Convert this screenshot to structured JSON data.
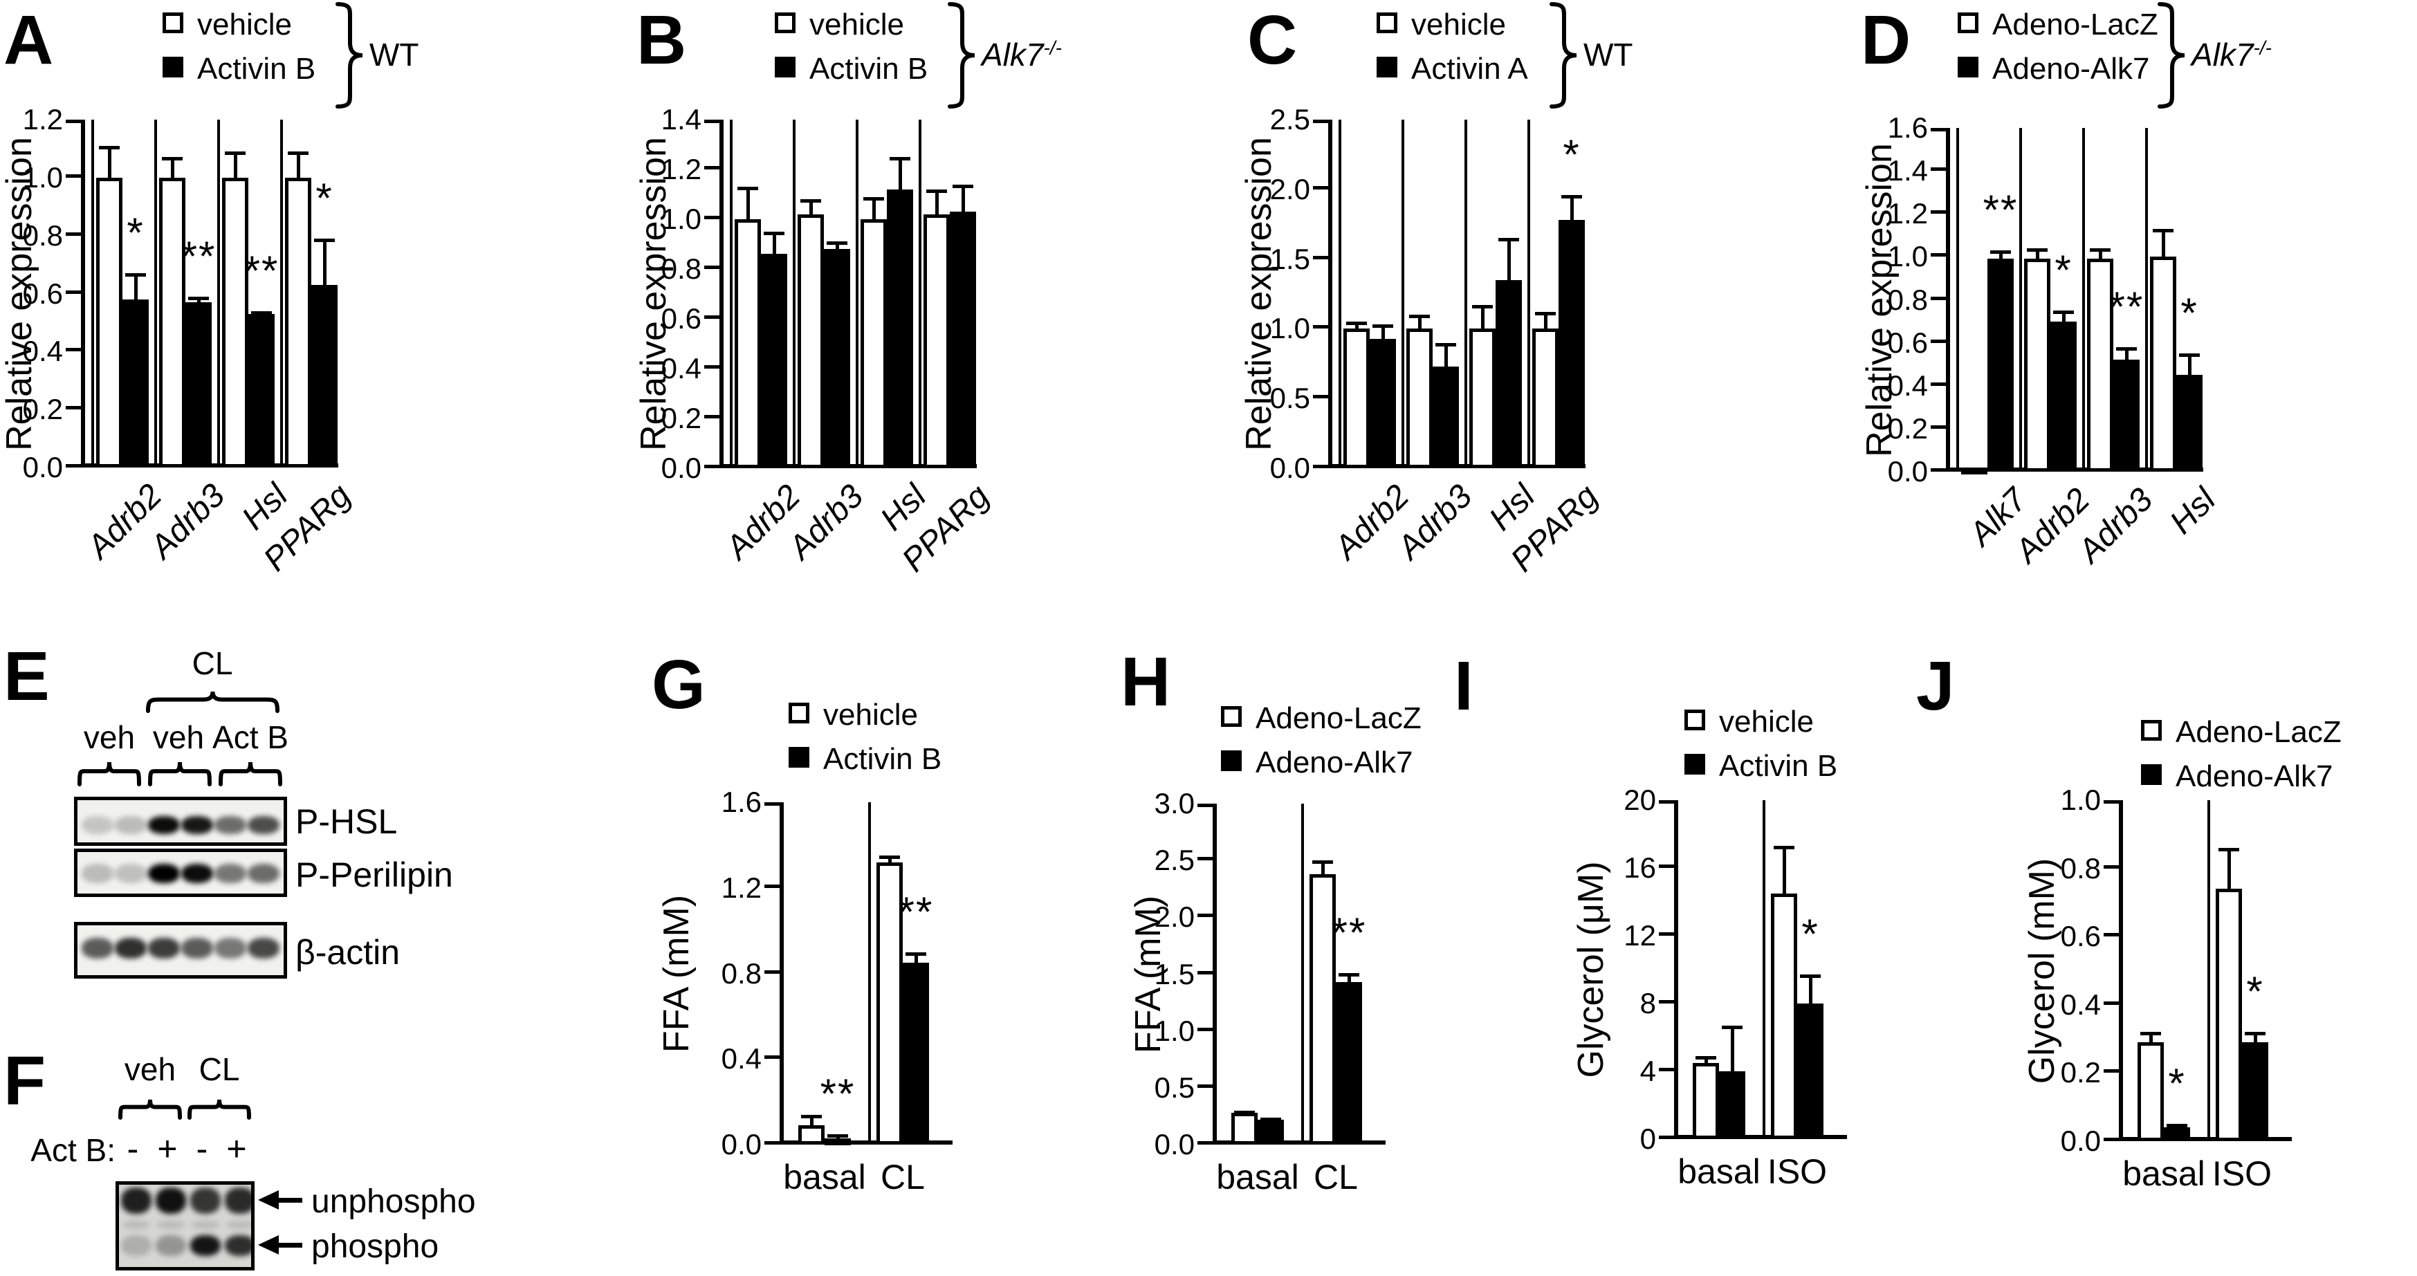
{
  "panels": {
    "A": {
      "letter": "A",
      "legend": {
        "items": [
          {
            "label": "vehicle",
            "fill": "open"
          },
          {
            "label": "Activin B",
            "fill": "solid"
          }
        ],
        "group": {
          "text": "WT",
          "sup": "",
          "italic": false
        }
      }
    },
    "B": {
      "letter": "B",
      "legend": {
        "items": [
          {
            "label": "vehicle",
            "fill": "open"
          },
          {
            "label": "Activin B",
            "fill": "solid"
          }
        ],
        "group": {
          "text": "Alk7",
          "sup": "-/-",
          "italic": true
        }
      }
    },
    "C": {
      "letter": "C",
      "legend": {
        "items": [
          {
            "label": "vehicle",
            "fill": "open"
          },
          {
            "label": "Activin A",
            "fill": "solid"
          }
        ],
        "group": {
          "text": "WT",
          "sup": "",
          "italic": false
        }
      }
    },
    "D": {
      "letter": "D",
      "legend": {
        "items": [
          {
            "label": "Adeno-LacZ",
            "fill": "open"
          },
          {
            "label": "Adeno-Alk7",
            "fill": "solid"
          }
        ],
        "group": {
          "text": "Alk7",
          "sup": "-/-",
          "italic": true
        }
      }
    },
    "G": {
      "letter": "G",
      "legend": {
        "items": [
          {
            "label": "vehicle",
            "fill": "open"
          },
          {
            "label": "Activin B",
            "fill": "solid"
          }
        ]
      }
    },
    "H": {
      "letter": "H",
      "legend": {
        "items": [
          {
            "label": "Adeno-LacZ",
            "fill": "open"
          },
          {
            "label": "Adeno-Alk7",
            "fill": "solid"
          }
        ]
      }
    },
    "I": {
      "letter": "I",
      "legend": {
        "items": [
          {
            "label": "vehicle",
            "fill": "open"
          },
          {
            "label": "Activin B",
            "fill": "solid"
          }
        ]
      }
    },
    "J": {
      "letter": "J",
      "legend": {
        "items": [
          {
            "label": "Adeno-LacZ",
            "fill": "open"
          },
          {
            "label": "Adeno-Alk7",
            "fill": "solid"
          }
        ]
      }
    },
    "E": {
      "letter": "E",
      "treatment_label": "CL",
      "group_labels": [
        "veh",
        "veh",
        "Act B"
      ],
      "rows": [
        {
          "label": "P-HSL",
          "bands": [
            0.18,
            0.22,
            0.95,
            0.9,
            0.55,
            0.68
          ]
        },
        {
          "label": "P-Perilipin",
          "bands": [
            0.22,
            0.2,
            1.0,
            0.95,
            0.5,
            0.55
          ]
        },
        {
          "label": "β-actin",
          "bands": [
            0.62,
            0.8,
            0.75,
            0.62,
            0.5,
            0.7
          ]
        }
      ]
    },
    "F": {
      "letter": "F",
      "group_labels": [
        "veh",
        "CL"
      ],
      "row_label": "Act B:",
      "lane_signs": [
        "-",
        "+",
        "-",
        "+"
      ],
      "band_rows": [
        {
          "label": "unphospho",
          "bands": [
            0.85,
            0.92,
            0.75,
            0.8
          ]
        },
        {
          "label": "phospho",
          "bands": [
            0.18,
            0.3,
            0.9,
            0.78
          ]
        }
      ]
    }
  },
  "chart_data": [
    {
      "panel": "A",
      "type": "bar",
      "title": "",
      "xlabel": "",
      "ylabel": "Relative expression",
      "ylim": [
        0,
        1.2
      ],
      "yticks": [
        "0.0",
        "0.2",
        "0.4",
        "0.6",
        "0.8",
        "1.0",
        "1.2"
      ],
      "categories": [
        "Adrb2",
        "Adrb3",
        "Hsl",
        "PPARg"
      ],
      "categories_italic": true,
      "x_rotated": true,
      "grid": false,
      "legend_position": "top",
      "series": [
        {
          "name": "vehicle",
          "fill": "open",
          "values": [
            1.0,
            1.0,
            1.0,
            1.0
          ],
          "errors": [
            0.11,
            0.07,
            0.09,
            0.09
          ]
        },
        {
          "name": "Activin B",
          "fill": "solid",
          "values": [
            0.58,
            0.57,
            0.53,
            0.63
          ],
          "errors": [
            0.09,
            0.02,
            0.01,
            0.16
          ]
        }
      ],
      "significance": [
        "*",
        "**",
        "**",
        "*"
      ]
    },
    {
      "panel": "B",
      "type": "bar",
      "title": "",
      "xlabel": "",
      "ylabel": "Relative expression",
      "ylim": [
        0,
        1.4
      ],
      "yticks": [
        "0.0",
        "0.2",
        "0.4",
        "0.6",
        "0.8",
        "1.0",
        "1.2",
        "1.4"
      ],
      "categories": [
        "Adrb2",
        "Adrb3",
        "Hsl",
        "PPARg"
      ],
      "categories_italic": true,
      "x_rotated": true,
      "grid": false,
      "legend_position": "top",
      "series": [
        {
          "name": "vehicle",
          "fill": "open",
          "values": [
            1.0,
            1.02,
            1.0,
            1.02
          ],
          "errors": [
            0.13,
            0.06,
            0.09,
            0.1
          ]
        },
        {
          "name": "Activin B",
          "fill": "solid",
          "values": [
            0.86,
            0.88,
            1.12,
            1.03
          ],
          "errors": [
            0.09,
            0.03,
            0.13,
            0.11
          ]
        }
      ],
      "significance": [
        null,
        null,
        null,
        null
      ]
    },
    {
      "panel": "C",
      "type": "bar",
      "title": "",
      "xlabel": "",
      "ylabel": "Relative expression",
      "ylim": [
        0,
        2.5
      ],
      "yticks": [
        "0.0",
        "0.5",
        "1.0",
        "1.5",
        "2.0",
        "2.5"
      ],
      "categories": [
        "Adrb2",
        "Adrb3",
        "Hsl",
        "PPARg"
      ],
      "categories_italic": true,
      "x_rotated": true,
      "grid": false,
      "legend_position": "top",
      "series": [
        {
          "name": "vehicle",
          "fill": "open",
          "values": [
            1.0,
            1.0,
            1.0,
            1.0
          ],
          "errors": [
            0.05,
            0.1,
            0.17,
            0.12
          ]
        },
        {
          "name": "Activin A",
          "fill": "solid",
          "values": [
            0.93,
            0.73,
            1.35,
            1.78
          ],
          "errors": [
            0.1,
            0.17,
            0.3,
            0.18
          ]
        }
      ],
      "significance": [
        null,
        null,
        null,
        "*"
      ]
    },
    {
      "panel": "D",
      "type": "bar",
      "title": "",
      "xlabel": "",
      "ylabel": "Relative expression",
      "ylim": [
        0,
        1.6
      ],
      "yticks": [
        "0.0",
        "0.2",
        "0.4",
        "0.6",
        "0.8",
        "1.0",
        "1.2",
        "1.4",
        "1.6"
      ],
      "categories": [
        "Alk7",
        "Adrb2",
        "Adrb3",
        "Hsl"
      ],
      "categories_italic": true,
      "x_rotated": true,
      "grid": false,
      "legend_position": "top",
      "series": [
        {
          "name": "Adeno-LacZ",
          "fill": "open",
          "values": [
            0.01,
            0.99,
            0.99,
            1.0
          ],
          "errors": [
            0.0,
            0.05,
            0.05,
            0.13
          ]
        },
        {
          "name": "Adeno-Alk7",
          "fill": "solid",
          "values": [
            0.99,
            0.7,
            0.52,
            0.45
          ],
          "errors": [
            0.04,
            0.05,
            0.06,
            0.1
          ]
        }
      ],
      "significance": [
        "**",
        "*",
        "**",
        "*"
      ]
    },
    {
      "panel": "G",
      "type": "bar",
      "title": "",
      "xlabel": "",
      "ylabel": "FFA (mM)",
      "ylim": [
        0,
        1.6
      ],
      "yticks": [
        "0.0",
        "0.4",
        "0.8",
        "1.2",
        "1.6"
      ],
      "categories": [
        "basal",
        "CL"
      ],
      "categories_italic": false,
      "x_rotated": false,
      "grid": false,
      "legend_position": "top",
      "series": [
        {
          "name": "vehicle",
          "fill": "open",
          "values": [
            0.09,
            1.32
          ],
          "errors": [
            0.05,
            0.03
          ]
        },
        {
          "name": "Activin B",
          "fill": "solid",
          "values": [
            0.03,
            0.85
          ],
          "errors": [
            0.02,
            0.05
          ]
        }
      ],
      "significance": [
        "**",
        "**"
      ]
    },
    {
      "panel": "H",
      "type": "bar",
      "title": "",
      "xlabel": "",
      "ylabel": "FFA (mM)",
      "ylim": [
        0,
        3.0
      ],
      "yticks": [
        "0.0",
        "0.5",
        "1.0",
        "1.5",
        "2.0",
        "2.5",
        "3.0"
      ],
      "categories": [
        "basal",
        "CL"
      ],
      "categories_italic": false,
      "x_rotated": false,
      "grid": false,
      "legend_position": "top",
      "series": [
        {
          "name": "Adeno-LacZ",
          "fill": "open",
          "values": [
            0.28,
            2.38
          ],
          "errors": [
            0.02,
            0.12
          ]
        },
        {
          "name": "Adeno-Alk7",
          "fill": "solid",
          "values": [
            0.22,
            1.43
          ],
          "errors": [
            0.02,
            0.08
          ]
        }
      ],
      "significance": [
        null,
        "**"
      ]
    },
    {
      "panel": "I",
      "type": "bar",
      "title": "",
      "xlabel": "",
      "ylabel": "Glycerol (μM)",
      "ylim": [
        0,
        20
      ],
      "yticks": [
        "0",
        "4",
        "8",
        "12",
        "16",
        "20"
      ],
      "categories": [
        "basal",
        "ISO"
      ],
      "categories_italic": false,
      "x_rotated": false,
      "grid": false,
      "legend_position": "top",
      "series": [
        {
          "name": "vehicle",
          "fill": "open",
          "values": [
            4.5,
            14.5
          ],
          "errors": [
            0.4,
            2.8
          ]
        },
        {
          "name": "Activin B",
          "fill": "solid",
          "values": [
            4.0,
            8.0
          ],
          "errors": [
            2.7,
            1.7
          ]
        }
      ],
      "significance": [
        null,
        "*"
      ]
    },
    {
      "panel": "J",
      "type": "bar",
      "title": "",
      "xlabel": "",
      "ylabel": "Glycerol (mM)",
      "ylim": [
        0,
        1.0
      ],
      "yticks": [
        "0.0",
        "0.2",
        "0.4",
        "0.6",
        "0.8",
        "1.0"
      ],
      "categories": [
        "basal",
        "ISO"
      ],
      "categories_italic": false,
      "x_rotated": false,
      "grid": false,
      "legend_position": "top",
      "series": [
        {
          "name": "Adeno-LacZ",
          "fill": "open",
          "values": [
            0.29,
            0.74
          ],
          "errors": [
            0.03,
            0.12
          ]
        },
        {
          "name": "Adeno-Alk7",
          "fill": "solid",
          "values": [
            0.04,
            0.29
          ],
          "errors": [
            0.01,
            0.03
          ]
        }
      ],
      "significance": [
        "*",
        "*"
      ]
    }
  ]
}
